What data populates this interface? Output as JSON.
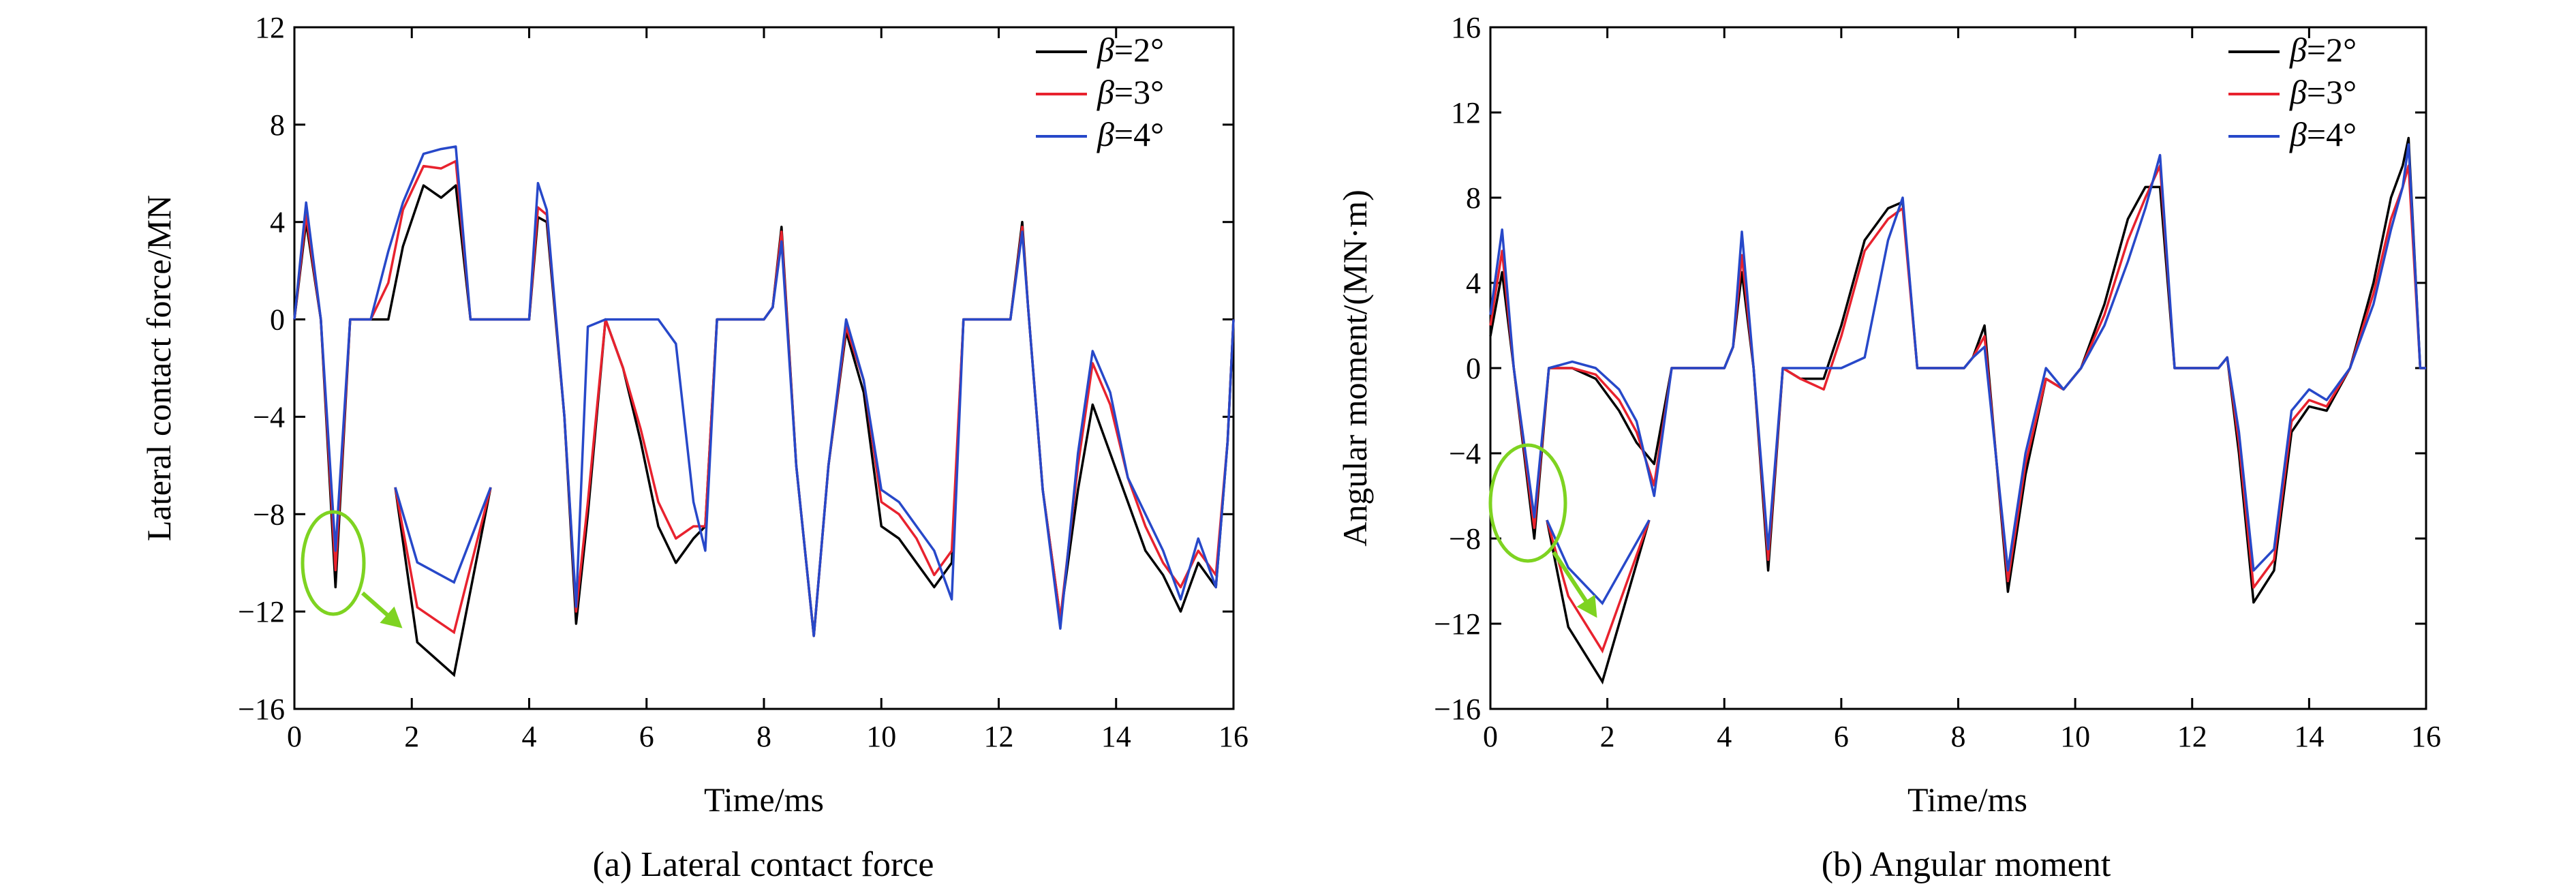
{
  "chart_data": [
    {
      "type": "line",
      "caption": "(a) Lateral contact force",
      "xlabel": "Time/ms",
      "ylabel": "Lateral contact force/MN",
      "xlim": [
        0,
        16
      ],
      "ylim": [
        -16,
        12
      ],
      "xticks": [
        "0",
        "2",
        "4",
        "6",
        "8",
        "10",
        "12",
        "14",
        "16"
      ],
      "yticks": [
        "−16",
        "−12",
        "−8",
        "−4",
        "0",
        "4",
        "8",
        "12"
      ],
      "legend_position": "top-right",
      "series": [
        {
          "name": "β=2°",
          "color": "#000000",
          "x": [
            0,
            0.2,
            0.45,
            0.7,
            0.95,
            1.3,
            1.6,
            1.85,
            2.2,
            2.5,
            2.75,
            3.0,
            3.5,
            4.0,
            4.15,
            4.3,
            4.6,
            4.8,
            5.0,
            5.3,
            5.6,
            5.9,
            6.2,
            6.5,
            6.8,
            7.0,
            7.2,
            7.6,
            8.0,
            8.15,
            8.3,
            8.55,
            8.85,
            9.1,
            9.4,
            9.7,
            10.0,
            10.3,
            10.6,
            10.9,
            11.2,
            11.4,
            11.7,
            12.2,
            12.4,
            12.5,
            12.75,
            13.05,
            13.35,
            13.6,
            13.9,
            14.2,
            14.5,
            14.8,
            15.1,
            15.4,
            15.7,
            15.9,
            16.0
          ],
          "y": [
            0,
            4,
            0,
            -11,
            0,
            0,
            0,
            3,
            5.5,
            5,
            5.5,
            0,
            0,
            0,
            4.2,
            4,
            -4,
            -12.5,
            -8,
            0,
            -2,
            -5,
            -8.5,
            -10,
            -9,
            -8.5,
            0,
            0,
            0,
            0.5,
            3.8,
            -6,
            -13,
            -6,
            -0.5,
            -3,
            -8.5,
            -9,
            -10,
            -11,
            -10,
            0,
            0,
            0,
            4,
            0.5,
            -7,
            -12.3,
            -7,
            -3.5,
            -5.5,
            -7.5,
            -9.5,
            -10.5,
            -12,
            -10,
            -11,
            -5,
            0
          ]
        },
        {
          "name": "β=3°",
          "color": "#e8222e",
          "x": [
            0,
            0.2,
            0.45,
            0.7,
            0.95,
            1.3,
            1.6,
            1.85,
            2.2,
            2.5,
            2.75,
            3.0,
            3.5,
            4.0,
            4.15,
            4.3,
            4.6,
            4.8,
            5.0,
            5.3,
            5.6,
            5.9,
            6.2,
            6.5,
            6.8,
            7.0,
            7.2,
            7.6,
            8.0,
            8.15,
            8.3,
            8.55,
            8.85,
            9.1,
            9.4,
            9.7,
            10.0,
            10.3,
            10.6,
            10.9,
            11.2,
            11.4,
            11.7,
            12.2,
            12.4,
            12.5,
            12.75,
            13.05,
            13.35,
            13.6,
            13.9,
            14.2,
            14.5,
            14.8,
            15.1,
            15.4,
            15.7,
            15.9,
            16.0
          ],
          "y": [
            0,
            4.3,
            0,
            -10.3,
            0,
            0,
            1.5,
            4.5,
            6.3,
            6.2,
            6.5,
            0,
            0,
            0,
            4.6,
            4.3,
            -4,
            -12,
            -7.5,
            0,
            -2,
            -4.5,
            -7.5,
            -9,
            -8.5,
            -8.5,
            0,
            0,
            0,
            0.5,
            3.6,
            -6,
            -13,
            -6,
            -0.3,
            -2.5,
            -7.5,
            -8,
            -9,
            -10.5,
            -9.5,
            0,
            0,
            0,
            3.8,
            0.5,
            -7,
            -12.3,
            -6,
            -1.8,
            -3.5,
            -6.5,
            -8.5,
            -10,
            -11,
            -9.5,
            -10.5,
            -5,
            0
          ]
        },
        {
          "name": "β=4°",
          "color": "#2748c9",
          "x": [
            0,
            0.2,
            0.45,
            0.7,
            0.95,
            1.3,
            1.6,
            1.85,
            2.2,
            2.5,
            2.75,
            3.0,
            3.5,
            4.0,
            4.15,
            4.3,
            4.6,
            4.8,
            5.0,
            5.3,
            5.6,
            5.9,
            6.2,
            6.5,
            6.8,
            7.0,
            7.2,
            7.6,
            8.0,
            8.15,
            8.3,
            8.55,
            8.85,
            9.1,
            9.4,
            9.7,
            10.0,
            10.3,
            10.6,
            10.9,
            11.2,
            11.4,
            11.7,
            12.2,
            12.4,
            12.5,
            12.75,
            13.05,
            13.35,
            13.6,
            13.9,
            14.2,
            14.5,
            14.8,
            15.1,
            15.4,
            15.7,
            15.9,
            16.0
          ],
          "y": [
            0,
            4.8,
            0,
            -9.5,
            0,
            0,
            2.8,
            4.8,
            6.8,
            7,
            7.1,
            0,
            0,
            0,
            5.6,
            4.5,
            -4,
            -11.8,
            -0.3,
            0,
            0,
            0,
            0,
            -1,
            -7.5,
            -9.5,
            0,
            0,
            0,
            0.5,
            3.2,
            -6,
            -13,
            -6,
            0,
            -2.5,
            -7,
            -7.5,
            -8.5,
            -9.5,
            -11.5,
            0,
            0,
            0,
            3.6,
            0.5,
            -7,
            -12.7,
            -5.5,
            -1.3,
            -3,
            -6.5,
            -8,
            -9.5,
            -11.5,
            -9,
            -11,
            -5,
            0
          ]
        }
      ],
      "inset": {
        "x": [
          2.25,
          2.4,
          2.65,
          2.9
        ],
        "series": [
          [
            -7,
            -13.2,
            -14.5,
            -7
          ],
          [
            -7,
            -11.8,
            -12.8,
            -7
          ],
          [
            -7,
            -10,
            -10.8,
            -7
          ]
        ]
      }
    },
    {
      "type": "line",
      "caption": "(b) Angular moment",
      "xlabel": "Time/ms",
      "ylabel": "Angular moment/(MN·m)",
      "xlim": [
        0,
        16
      ],
      "ylim": [
        -16,
        16
      ],
      "xticks": [
        "0",
        "2",
        "4",
        "6",
        "8",
        "10",
        "12",
        "14",
        "16"
      ],
      "yticks": [
        "−16",
        "−12",
        "−8",
        "−4",
        "0",
        "4",
        "8",
        "12",
        "16"
      ],
      "legend_position": "top-right",
      "series": [
        {
          "name": "β=2°",
          "color": "#000000",
          "x": [
            0,
            0.2,
            0.4,
            0.75,
            1.0,
            1.4,
            1.8,
            2.2,
            2.5,
            2.8,
            3.1,
            3.5,
            4.0,
            4.15,
            4.3,
            4.5,
            4.75,
            5.0,
            5.3,
            5.7,
            6.0,
            6.4,
            6.8,
            7.05,
            7.3,
            7.7,
            8.1,
            8.25,
            8.45,
            8.85,
            9.15,
            9.5,
            9.8,
            10.1,
            10.5,
            10.9,
            11.2,
            11.45,
            11.7,
            12.2,
            12.45,
            12.6,
            12.8,
            13.05,
            13.4,
            13.7,
            14.0,
            14.3,
            14.7,
            15.1,
            15.4,
            15.6,
            15.7,
            15.9,
            16.0
          ],
          "y": [
            1.5,
            4.5,
            0,
            -8,
            0,
            0,
            -0.5,
            -2,
            -3.5,
            -4.5,
            0,
            0,
            0,
            1,
            4.5,
            0,
            -9.5,
            0,
            -0.5,
            -0.5,
            2,
            6,
            7.5,
            7.8,
            0,
            0,
            0,
            0.5,
            2,
            -10.5,
            -5,
            -0.5,
            -1,
            0,
            3,
            7,
            8.5,
            8.5,
            0,
            0,
            0,
            0.5,
            -4,
            -11,
            -9.5,
            -3,
            -1.8,
            -2,
            0,
            4,
            8,
            9.5,
            10.8,
            0,
            0
          ]
        },
        {
          "name": "β=3°",
          "color": "#e8222e",
          "x": [
            0,
            0.2,
            0.4,
            0.75,
            1.0,
            1.4,
            1.8,
            2.2,
            2.5,
            2.8,
            3.1,
            3.5,
            4.0,
            4.15,
            4.3,
            4.5,
            4.75,
            5.0,
            5.3,
            5.7,
            6.0,
            6.4,
            6.8,
            7.05,
            7.3,
            7.7,
            8.1,
            8.25,
            8.45,
            8.85,
            9.15,
            9.5,
            9.8,
            10.1,
            10.5,
            10.9,
            11.2,
            11.45,
            11.7,
            12.2,
            12.45,
            12.6,
            12.8,
            13.05,
            13.4,
            13.7,
            14.0,
            14.3,
            14.7,
            15.1,
            15.4,
            15.6,
            15.7,
            15.9,
            16.0
          ],
          "y": [
            2,
            5.5,
            0,
            -7.5,
            0,
            0,
            -0.3,
            -1.5,
            -3,
            -5.5,
            0,
            0,
            0,
            1,
            5.3,
            0,
            -9,
            0,
            -0.5,
            -1,
            1.5,
            5.5,
            7,
            7.5,
            0,
            0,
            0,
            0.5,
            1.5,
            -10,
            -4.5,
            -0.5,
            -1,
            0,
            2.5,
            6,
            8,
            9.5,
            0,
            0,
            0,
            0.5,
            -3.5,
            -10.3,
            -9,
            -2.5,
            -1.5,
            -1.8,
            0,
            3.5,
            7,
            8.5,
            9.5,
            0,
            0
          ]
        },
        {
          "name": "β=4°",
          "color": "#2748c9",
          "x": [
            0,
            0.2,
            0.4,
            0.75,
            1.0,
            1.4,
            1.8,
            2.2,
            2.5,
            2.8,
            3.1,
            3.5,
            4.0,
            4.15,
            4.3,
            4.5,
            4.75,
            5.0,
            5.3,
            5.7,
            6.0,
            6.4,
            6.8,
            7.05,
            7.3,
            7.7,
            8.1,
            8.25,
            8.45,
            8.85,
            9.15,
            9.5,
            9.8,
            10.1,
            10.5,
            10.9,
            11.2,
            11.45,
            11.7,
            12.2,
            12.45,
            12.6,
            12.8,
            13.05,
            13.4,
            13.7,
            14.0,
            14.3,
            14.7,
            15.1,
            15.4,
            15.6,
            15.7,
            15.9,
            16.0
          ],
          "y": [
            2.5,
            6.5,
            0,
            -7,
            0,
            0.3,
            0,
            -1,
            -2.5,
            -6,
            0,
            0,
            0,
            1,
            6.4,
            0,
            -8.5,
            0,
            0,
            0,
            0,
            0.5,
            6,
            8,
            0,
            0,
            0,
            0.5,
            1,
            -9.5,
            -4,
            0,
            -1,
            0,
            2,
            5,
            7.5,
            10,
            0,
            0,
            0,
            0.5,
            -3,
            -9.5,
            -8.5,
            -2,
            -1,
            -1.5,
            0,
            3,
            6.5,
            8.5,
            10.5,
            0,
            0
          ]
        }
      ],
      "inset": {
        "x": [
          1.4,
          1.65,
          2.05,
          2.6
        ],
        "series": [
          [
            -8,
            -12.5,
            -14.8,
            -8
          ],
          [
            -8,
            -11.2,
            -13.5,
            -8
          ],
          [
            -8,
            -10,
            -11.5,
            -8
          ]
        ]
      }
    }
  ]
}
